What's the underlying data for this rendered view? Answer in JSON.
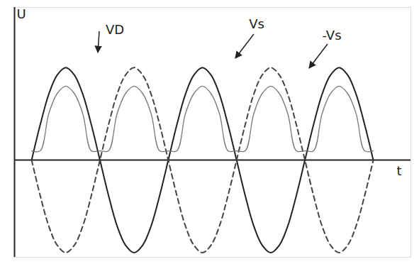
{
  "chart_data": {
    "type": "line",
    "x": [
      0.25,
      0.375,
      0.5,
      0.625,
      0.75,
      0.875,
      1,
      1.125,
      1.25,
      1.375,
      1.5,
      1.625,
      1.75,
      1.875,
      2,
      2.125,
      2.25,
      2.375,
      2.5,
      2.625,
      2.75,
      2.875,
      3,
      3.125,
      3.25,
      3.375,
      3.5,
      3.625,
      3.75,
      3.875,
      4,
      4.125,
      4.25,
      4.375,
      4.5,
      4.625,
      4.75,
      4.875,
      5,
      5.125,
      5.25
    ],
    "series": [
      {
        "name": "Vs",
        "color": "#222222",
        "line_style": "solid",
        "values": [
          0,
          0.38,
          0.71,
          0.92,
          1,
          0.92,
          0.71,
          0.38,
          0,
          -0.38,
          -0.71,
          -0.92,
          -1,
          -0.92,
          -0.71,
          -0.38,
          0,
          0.38,
          0.71,
          0.92,
          1,
          0.92,
          0.71,
          0.38,
          0,
          -0.38,
          -0.71,
          -0.92,
          -1,
          -0.92,
          -0.71,
          -0.38,
          0,
          0.38,
          0.71,
          0.92,
          1,
          0.92,
          0.71,
          0.38,
          0
        ]
      },
      {
        "name": "-Vs",
        "color": "#444444",
        "line_style": "dashed",
        "values": [
          0,
          -0.38,
          -0.71,
          -0.92,
          -1,
          -0.92,
          -0.71,
          -0.38,
          0,
          0.38,
          0.71,
          0.92,
          1,
          0.92,
          0.71,
          0.38,
          0,
          -0.38,
          -0.71,
          -0.92,
          -1,
          -0.92,
          -0.71,
          -0.38,
          0,
          0.38,
          0.71,
          0.92,
          1,
          0.92,
          0.71,
          0.38,
          0,
          -0.38,
          -0.71,
          -0.92,
          -1,
          -0.92,
          -0.71,
          -0.38,
          0
        ]
      },
      {
        "name": "VD",
        "color": "#777777",
        "line_style": "solid",
        "values": [
          0.1,
          0.1,
          0.5,
          0.72,
          0.8,
          0.72,
          0.5,
          0.1,
          0.1,
          0.1,
          0.5,
          0.72,
          0.8,
          0.72,
          0.5,
          0.1,
          0.1,
          0.1,
          0.5,
          0.72,
          0.8,
          0.72,
          0.5,
          0.1,
          0.1,
          0.1,
          0.5,
          0.72,
          0.8,
          0.72,
          0.5,
          0.1,
          0.1,
          0.1,
          0.5,
          0.72,
          0.8,
          0.72,
          0.5,
          0.1,
          0.1
        ]
      }
    ],
    "xlim": [
      0,
      5.8
    ],
    "ylim": [
      -1.05,
      1.65
    ],
    "xticks": [],
    "yticks": [],
    "tick_labels": false,
    "xlabel": "t",
    "ylabel": "U"
  }
}
